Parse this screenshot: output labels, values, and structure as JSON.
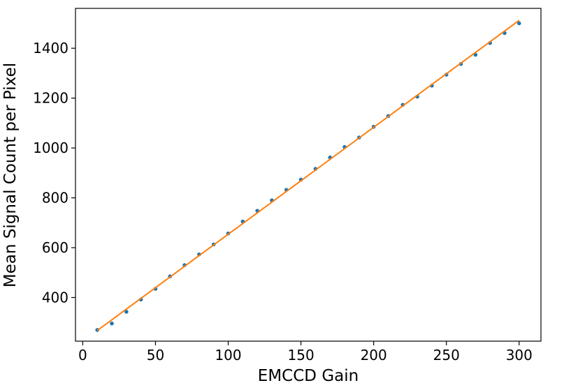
{
  "chart_data": {
    "type": "scatter",
    "title": "",
    "xlabel": "EMCCD Gain",
    "ylabel": "Mean Signal Count per Pixel",
    "xlim": [
      -5,
      315
    ],
    "ylim": [
      225,
      1560
    ],
    "x_ticks": [
      0,
      50,
      100,
      150,
      200,
      250,
      300
    ],
    "y_ticks": [
      400,
      600,
      800,
      1000,
      1200,
      1400
    ],
    "grid": false,
    "series": [
      {
        "kind": "scatter",
        "color": "#1f77b4",
        "x": [
          10,
          20,
          30,
          40,
          50,
          60,
          70,
          80,
          90,
          100,
          110,
          120,
          130,
          140,
          150,
          160,
          170,
          180,
          190,
          200,
          210,
          220,
          230,
          240,
          250,
          260,
          270,
          280,
          290,
          300
        ],
        "y": [
          270,
          296,
          343,
          392,
          435,
          485,
          530,
          573,
          613,
          657,
          705,
          748,
          790,
          832,
          873,
          916,
          962,
          1004,
          1042,
          1085,
          1128,
          1173,
          1206,
          1250,
          1294,
          1337,
          1374,
          1421,
          1461,
          1500
        ]
      },
      {
        "kind": "line",
        "color": "#ff7f0e",
        "x": [
          10,
          300
        ],
        "y": [
          268,
          1512
        ]
      }
    ]
  }
}
